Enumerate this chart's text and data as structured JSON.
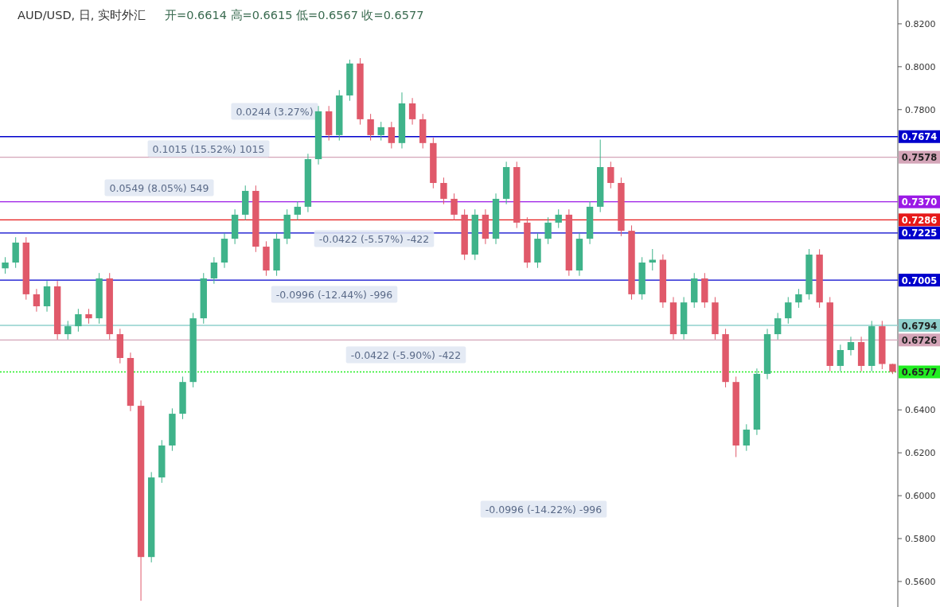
{
  "chart_data": {
    "type": "candlestick",
    "title": "AUD/USD, 日, 实时外汇",
    "subtitle": "开=0.6614  高=0.6615  低=0.6567  收=0.6577",
    "annotations": [
      "0.1015 (15.52%) 1015",
      "0.0244 (3.27%)",
      "0.0549 (8.05%) 549",
      "-0.0996 (-12.44%) -996",
      "-0.0422 (-5.57%) -422",
      "-0.0422 (-5.90%) -422",
      "-0.0996 (-14.22%) -996"
    ],
    "categories": [
      null,
      null,
      null,
      null,
      null,
      null,
      null,
      null,
      null,
      null,
      null,
      null,
      null,
      null,
      null,
      null,
      null,
      null,
      null,
      null,
      null,
      null,
      null,
      null,
      null,
      null,
      null,
      null,
      null,
      null,
      null,
      null,
      null,
      null,
      null,
      null,
      null,
      null,
      null,
      null,
      null,
      null,
      null,
      null,
      null,
      null,
      null,
      null,
      null,
      null,
      null,
      null,
      null,
      null,
      null,
      null,
      null,
      null,
      null,
      null,
      null,
      null,
      null,
      null,
      null,
      null,
      null,
      null,
      null,
      null,
      null,
      null,
      null,
      null,
      null,
      null,
      null,
      null,
      null,
      null,
      null,
      null,
      null,
      null,
      null,
      null
    ],
    "ohlc": [
      [
        0.706,
        0.7112,
        0.7035,
        0.7087
      ],
      [
        0.7087,
        0.7205,
        0.7062,
        0.718
      ],
      [
        0.718,
        0.7205,
        0.6914,
        0.6939
      ],
      [
        0.6939,
        0.6964,
        0.6858,
        0.6883
      ],
      [
        0.6883,
        0.7001,
        0.6858,
        0.6976
      ],
      [
        0.6976,
        0.7001,
        0.6728,
        0.6753
      ],
      [
        0.6753,
        0.6815,
        0.6728,
        0.679
      ],
      [
        0.679,
        0.6871,
        0.6765,
        0.6846
      ],
      [
        0.6846,
        0.6871,
        0.6802,
        0.6827
      ],
      [
        0.6827,
        0.7038,
        0.6802,
        0.7013
      ],
      [
        0.7013,
        0.7038,
        0.6728,
        0.6753
      ],
      [
        0.6753,
        0.6778,
        0.6617,
        0.6642
      ],
      [
        0.6642,
        0.6667,
        0.6394,
        0.6419
      ],
      [
        0.6419,
        0.6444,
        0.551,
        0.5714
      ],
      [
        0.5714,
        0.611,
        0.5689,
        0.6085
      ],
      [
        0.6085,
        0.6259,
        0.606,
        0.6234
      ],
      [
        0.6234,
        0.6407,
        0.6209,
        0.6382
      ],
      [
        0.6382,
        0.6555,
        0.6357,
        0.653
      ],
      [
        0.653,
        0.6852,
        0.6505,
        0.6827
      ],
      [
        0.6827,
        0.7038,
        0.6802,
        0.7013
      ],
      [
        0.7013,
        0.7112,
        0.6988,
        0.7087
      ],
      [
        0.7087,
        0.7223,
        0.7062,
        0.7198
      ],
      [
        0.7198,
        0.7335,
        0.7173,
        0.731
      ],
      [
        0.731,
        0.7446,
        0.7285,
        0.7421
      ],
      [
        0.7421,
        0.7446,
        0.7136,
        0.7161
      ],
      [
        0.7161,
        0.7186,
        0.7025,
        0.705
      ],
      [
        0.705,
        0.7223,
        0.7025,
        0.7198
      ],
      [
        0.7198,
        0.7335,
        0.7173,
        0.731
      ],
      [
        0.731,
        0.7372,
        0.7285,
        0.7347
      ],
      [
        0.7347,
        0.7594,
        0.7322,
        0.7569
      ],
      [
        0.7569,
        0.7817,
        0.7544,
        0.7792
      ],
      [
        0.7792,
        0.7817,
        0.7656,
        0.7681
      ],
      [
        0.7681,
        0.7891,
        0.7656,
        0.7866
      ],
      [
        0.7866,
        0.8033,
        0.7841,
        0.8015
      ],
      [
        0.8015,
        0.804,
        0.773,
        0.7755
      ],
      [
        0.7755,
        0.778,
        0.7656,
        0.7681
      ],
      [
        0.7681,
        0.7743,
        0.7656,
        0.7718
      ],
      [
        0.7718,
        0.7743,
        0.7619,
        0.7644
      ],
      [
        0.7644,
        0.788,
        0.7619,
        0.7829
      ],
      [
        0.7829,
        0.7854,
        0.773,
        0.7755
      ],
      [
        0.7755,
        0.778,
        0.7619,
        0.7644
      ],
      [
        0.7644,
        0.7669,
        0.7433,
        0.7458
      ],
      [
        0.7458,
        0.7483,
        0.7359,
        0.7384
      ],
      [
        0.7384,
        0.7409,
        0.7285,
        0.731
      ],
      [
        0.731,
        0.7335,
        0.7099,
        0.7124
      ],
      [
        0.7124,
        0.7335,
        0.7099,
        0.731
      ],
      [
        0.731,
        0.7335,
        0.7173,
        0.7198
      ],
      [
        0.7198,
        0.7409,
        0.7173,
        0.7384
      ],
      [
        0.7384,
        0.7557,
        0.7359,
        0.7532
      ],
      [
        0.7532,
        0.7557,
        0.7248,
        0.7273
      ],
      [
        0.7273,
        0.7298,
        0.7062,
        0.7087
      ],
      [
        0.7087,
        0.7223,
        0.7062,
        0.7198
      ],
      [
        0.7198,
        0.7298,
        0.7173,
        0.7273
      ],
      [
        0.7273,
        0.7335,
        0.7248,
        0.731
      ],
      [
        0.731,
        0.7335,
        0.7025,
        0.705
      ],
      [
        0.705,
        0.7223,
        0.7025,
        0.7198
      ],
      [
        0.7198,
        0.7372,
        0.7173,
        0.7347
      ],
      [
        0.7347,
        0.766,
        0.7322,
        0.7532
      ],
      [
        0.7532,
        0.7557,
        0.7433,
        0.7458
      ],
      [
        0.7458,
        0.7483,
        0.721,
        0.7235
      ],
      [
        0.7235,
        0.726,
        0.6914,
        0.6939
      ],
      [
        0.6939,
        0.7112,
        0.6914,
        0.7087
      ],
      [
        0.7087,
        0.715,
        0.705,
        0.71
      ],
      [
        0.71,
        0.7125,
        0.6876,
        0.6901
      ],
      [
        0.6901,
        0.6926,
        0.6728,
        0.6753
      ],
      [
        0.6753,
        0.6926,
        0.6728,
        0.6901
      ],
      [
        0.6901,
        0.7038,
        0.6876,
        0.7013
      ],
      [
        0.7013,
        0.7038,
        0.6876,
        0.6901
      ],
      [
        0.6901,
        0.6926,
        0.6728,
        0.6753
      ],
      [
        0.6753,
        0.6778,
        0.6505,
        0.653
      ],
      [
        0.653,
        0.6555,
        0.618,
        0.6234
      ],
      [
        0.6234,
        0.6333,
        0.6209,
        0.6308
      ],
      [
        0.6308,
        0.6593,
        0.6283,
        0.6568
      ],
      [
        0.6568,
        0.6778,
        0.6543,
        0.6753
      ],
      [
        0.6753,
        0.6852,
        0.6728,
        0.6827
      ],
      [
        0.6827,
        0.6926,
        0.6802,
        0.6901
      ],
      [
        0.6901,
        0.6964,
        0.6876,
        0.6939
      ],
      [
        0.6939,
        0.715,
        0.6914,
        0.7124
      ],
      [
        0.7124,
        0.7149,
        0.6876,
        0.6901
      ],
      [
        0.6901,
        0.6926,
        0.658,
        0.6605
      ],
      [
        0.6605,
        0.6704,
        0.658,
        0.6679
      ],
      [
        0.6679,
        0.6741,
        0.6654,
        0.6716
      ],
      [
        0.6716,
        0.6741,
        0.658,
        0.6605
      ],
      [
        0.6605,
        0.6815,
        0.658,
        0.679
      ],
      [
        0.679,
        0.6815,
        0.659,
        0.6614
      ],
      [
        0.6614,
        0.6615,
        0.6567,
        0.6577
      ]
    ],
    "ylim": [
      0.5481,
      0.8311
    ],
    "yticks": [
      {
        "value": 0.82,
        "label": "0.8200"
      },
      {
        "value": 0.8,
        "label": "0.8000"
      },
      {
        "value": 0.78,
        "label": "0.7800"
      },
      {
        "value": 0.64,
        "label": "0.6400"
      },
      {
        "value": 0.62,
        "label": "0.6200"
      },
      {
        "value": 0.6,
        "label": "0.6000"
      },
      {
        "value": 0.58,
        "label": "0.5800"
      },
      {
        "value": 0.56,
        "label": "0.5600"
      }
    ],
    "tick_labels": "y",
    "ref_lines": [
      {
        "axis": "y",
        "value": 0.7674,
        "label": "0.7674",
        "color": "#0000cc"
      },
      {
        "axis": "y",
        "value": 0.7578,
        "label": "0.7578",
        "color": "#d4a5b8"
      },
      {
        "axis": "y",
        "value": 0.737,
        "label": "0.7370",
        "color": "#9b1ae6"
      },
      {
        "axis": "y",
        "value": 0.7286,
        "label": "0.7286",
        "color": "#e61919"
      },
      {
        "axis": "y",
        "value": 0.7225,
        "label": "0.7225",
        "color": "#0000cc"
      },
      {
        "axis": "y",
        "value": 0.7005,
        "label": "0.7005",
        "color": "#0000cc"
      },
      {
        "axis": "y",
        "value": 0.6794,
        "label": "0.6794",
        "color": "#8fd0cc"
      },
      {
        "axis": "y",
        "value": 0.6726,
        "label": "0.6726",
        "color": "#d4a5b8"
      },
      {
        "axis": "y",
        "value": 0.6577,
        "label": "0.6577",
        "color": "#22ee22",
        "line_style": "dotted"
      }
    ]
  }
}
